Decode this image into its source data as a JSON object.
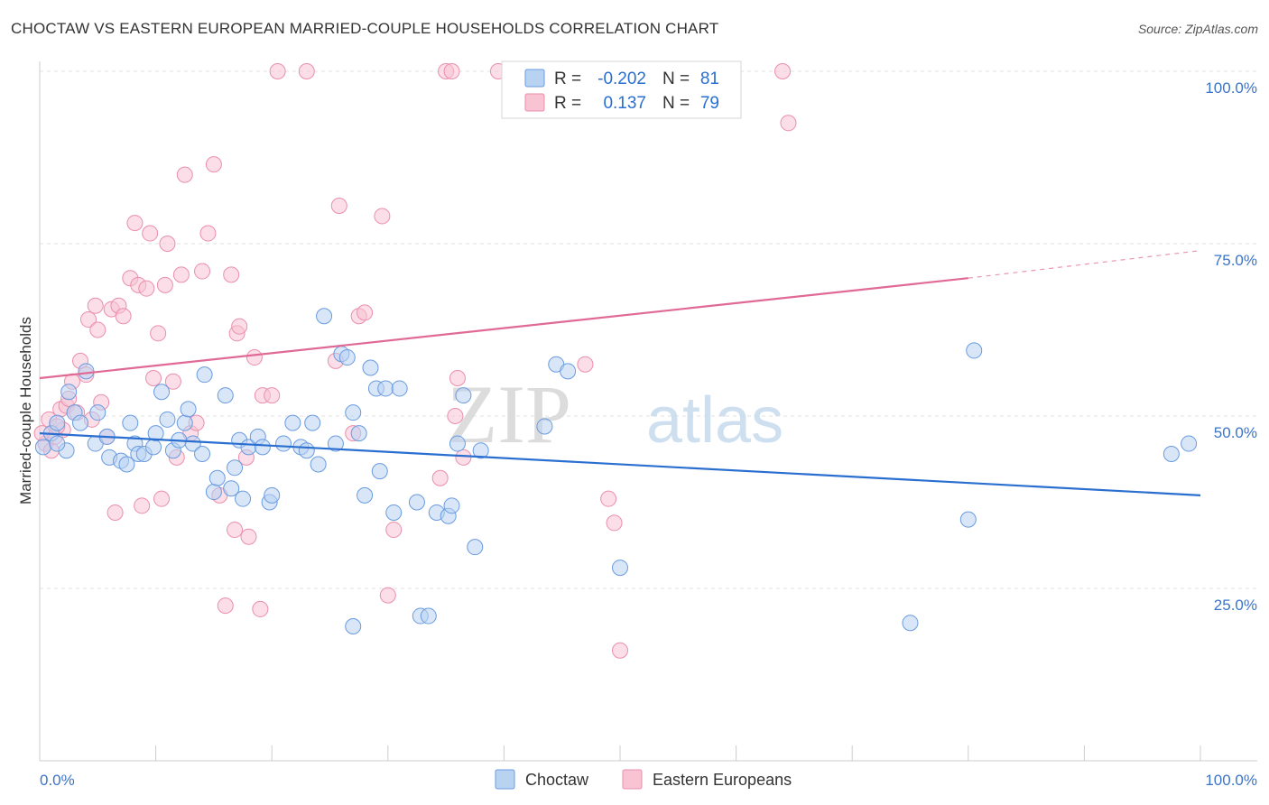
{
  "header": {
    "title": "CHOCTAW VS EASTERN EUROPEAN MARRIED-COUPLE HOUSEHOLDS CORRELATION CHART",
    "source": "Source: ZipAtlas.com"
  },
  "colors": {
    "choctaw_fill": "#b8d2f2",
    "choctaw_stroke": "#6a9be0",
    "choctaw_line": "#2a6fd0",
    "eastern_fill": "#f8c3d3",
    "eastern_stroke": "#ea8fad",
    "eastern_line": "#e06a95",
    "axis_text": "#3c74c8",
    "grid": "#e2e2e2"
  },
  "legend": {
    "choctaw": {
      "r_label": "R =",
      "r_value": "-0.202",
      "n_label": "N =",
      "n_value": "81"
    },
    "eastern": {
      "r_label": "R =",
      "r_value": "0.137",
      "n_label": "N =",
      "n_value": "79"
    }
  },
  "watermark": {
    "part1": "ZIP",
    "part2": "atlas"
  },
  "chart_data": {
    "type": "scatter",
    "title": "CHOCTAW VS EASTERN EUROPEAN MARRIED-COUPLE HOUSEHOLDS CORRELATION CHART",
    "xlabel": "",
    "ylabel": "Married-couple Households",
    "xlim": [
      0,
      100
    ],
    "ylim": [
      0,
      100
    ],
    "x_tick_labels": [
      "0.0%",
      "100.0%"
    ],
    "y_tick_labels": [
      "25.0%",
      "50.0%",
      "75.0%",
      "100.0%"
    ],
    "y_ticks": [
      25,
      50,
      75,
      100
    ],
    "bottom_legend": [
      "Choctaw",
      "Eastern Europeans"
    ],
    "series": [
      {
        "name": "Choctaw",
        "R": -0.202,
        "N": 81,
        "trend": {
          "x0": 0,
          "y0": 47.5,
          "x1": 100,
          "y1": 38.5
        },
        "points": [
          [
            0.3,
            45.5
          ],
          [
            1.0,
            47.5
          ],
          [
            1.5,
            49.0
          ],
          [
            2.3,
            45.0
          ],
          [
            2.5,
            53.5
          ],
          [
            3.0,
            50.5
          ],
          [
            3.5,
            49.0
          ],
          [
            4.0,
            56.5
          ],
          [
            4.8,
            46.0
          ],
          [
            5.0,
            50.5
          ],
          [
            5.8,
            47.0
          ],
          [
            6.0,
            44.0
          ],
          [
            7.0,
            43.5
          ],
          [
            7.5,
            43.0
          ],
          [
            7.8,
            49.0
          ],
          [
            8.2,
            46.0
          ],
          [
            8.5,
            44.5
          ],
          [
            9.0,
            44.5
          ],
          [
            9.8,
            45.5
          ],
          [
            10.0,
            47.5
          ],
          [
            10.5,
            53.5
          ],
          [
            11.0,
            49.5
          ],
          [
            11.5,
            45.0
          ],
          [
            12.0,
            46.5
          ],
          [
            12.5,
            49.0
          ],
          [
            12.8,
            51.0
          ],
          [
            13.2,
            46.0
          ],
          [
            14.0,
            44.5
          ],
          [
            14.2,
            56.0
          ],
          [
            15.0,
            39.0
          ],
          [
            15.3,
            41.0
          ],
          [
            16.0,
            53.0
          ],
          [
            16.5,
            39.5
          ],
          [
            16.8,
            42.5
          ],
          [
            17.2,
            46.5
          ],
          [
            17.5,
            38.0
          ],
          [
            18.0,
            45.5
          ],
          [
            18.8,
            47.0
          ],
          [
            19.2,
            45.5
          ],
          [
            19.8,
            37.5
          ],
          [
            20.0,
            38.5
          ],
          [
            21.0,
            46.0
          ],
          [
            21.8,
            49.0
          ],
          [
            22.5,
            45.5
          ],
          [
            23.0,
            45.0
          ],
          [
            23.5,
            49.0
          ],
          [
            24.0,
            43.0
          ],
          [
            24.5,
            64.5
          ],
          [
            25.5,
            46.0
          ],
          [
            26.0,
            59.0
          ],
          [
            26.5,
            58.5
          ],
          [
            27.0,
            50.5
          ],
          [
            27.5,
            47.5
          ],
          [
            28.0,
            38.5
          ],
          [
            28.5,
            57.0
          ],
          [
            29.0,
            54.0
          ],
          [
            29.3,
            42.0
          ],
          [
            29.8,
            54.0
          ],
          [
            30.5,
            36.0
          ],
          [
            31.0,
            54.0
          ],
          [
            32.5,
            37.5
          ],
          [
            32.8,
            21.0
          ],
          [
            33.5,
            21.0
          ],
          [
            34.2,
            36.0
          ],
          [
            35.2,
            35.5
          ],
          [
            35.5,
            37.0
          ],
          [
            36.0,
            46.0
          ],
          [
            36.5,
            53.0
          ],
          [
            37.5,
            31.0
          ],
          [
            38.0,
            45.0
          ],
          [
            43.5,
            48.5
          ],
          [
            44.5,
            57.5
          ],
          [
            45.5,
            56.5
          ],
          [
            50.0,
            28.0
          ],
          [
            75.0,
            20.0
          ],
          [
            80.0,
            35.0
          ],
          [
            80.5,
            59.5
          ],
          [
            97.5,
            44.5
          ],
          [
            99.0,
            46.0
          ],
          [
            27.0,
            19.5
          ],
          [
            1.5,
            46.0
          ]
        ]
      },
      {
        "name": "Eastern Europeans",
        "R": 0.137,
        "N": 79,
        "trend": {
          "x0": 0,
          "y0": 55.5,
          "x1": 80,
          "y1": 70.0,
          "dash_x1": 100,
          "dash_y1": 74.0
        },
        "points": [
          [
            0.5,
            46.0
          ],
          [
            0.8,
            49.5
          ],
          [
            1.0,
            45.0
          ],
          [
            1.3,
            47.0
          ],
          [
            1.8,
            51.0
          ],
          [
            2.0,
            48.0
          ],
          [
            2.3,
            51.5
          ],
          [
            2.5,
            52.5
          ],
          [
            2.8,
            55.0
          ],
          [
            3.2,
            50.5
          ],
          [
            3.5,
            58.0
          ],
          [
            4.0,
            56.0
          ],
          [
            4.2,
            64.0
          ],
          [
            4.5,
            49.5
          ],
          [
            4.8,
            66.0
          ],
          [
            5.0,
            62.5
          ],
          [
            5.3,
            52.0
          ],
          [
            5.8,
            47.0
          ],
          [
            6.2,
            65.5
          ],
          [
            6.5,
            36.0
          ],
          [
            6.8,
            66.0
          ],
          [
            7.2,
            64.5
          ],
          [
            7.8,
            70.0
          ],
          [
            8.2,
            78.0
          ],
          [
            8.5,
            69.0
          ],
          [
            8.8,
            37.0
          ],
          [
            9.2,
            68.5
          ],
          [
            9.5,
            76.5
          ],
          [
            9.8,
            55.5
          ],
          [
            10.2,
            62.0
          ],
          [
            10.5,
            38.0
          ],
          [
            10.8,
            69.0
          ],
          [
            11.0,
            75.0
          ],
          [
            11.5,
            55.0
          ],
          [
            11.8,
            44.0
          ],
          [
            12.2,
            70.5
          ],
          [
            12.5,
            85.0
          ],
          [
            13.0,
            47.5
          ],
          [
            13.5,
            49.0
          ],
          [
            14.0,
            71.0
          ],
          [
            14.5,
            76.5
          ],
          [
            15.0,
            86.5
          ],
          [
            15.5,
            38.5
          ],
          [
            16.0,
            22.5
          ],
          [
            16.5,
            70.5
          ],
          [
            16.8,
            33.5
          ],
          [
            17.0,
            62.0
          ],
          [
            17.2,
            63.0
          ],
          [
            17.8,
            44.0
          ],
          [
            18.0,
            32.5
          ],
          [
            18.5,
            58.5
          ],
          [
            19.0,
            22.0
          ],
          [
            19.2,
            53.0
          ],
          [
            20.0,
            53.0
          ],
          [
            20.5,
            100.0
          ],
          [
            23.0,
            100.0
          ],
          [
            25.5,
            58.0
          ],
          [
            25.8,
            80.5
          ],
          [
            27.0,
            47.5
          ],
          [
            27.5,
            64.5
          ],
          [
            28.0,
            65.0
          ],
          [
            29.5,
            79.0
          ],
          [
            30.0,
            24.0
          ],
          [
            30.5,
            33.5
          ],
          [
            34.5,
            41.0
          ],
          [
            35.0,
            100.0
          ],
          [
            35.5,
            100.0
          ],
          [
            35.8,
            50.0
          ],
          [
            36.0,
            55.5
          ],
          [
            36.5,
            44.0
          ],
          [
            39.5,
            100.0
          ],
          [
            47.0,
            57.5
          ],
          [
            49.0,
            38.0
          ],
          [
            49.5,
            34.5
          ],
          [
            50.0,
            16.0
          ],
          [
            64.0,
            100.0
          ],
          [
            64.5,
            92.5
          ],
          [
            1.5,
            48.5
          ],
          [
            0.2,
            47.5
          ]
        ]
      }
    ]
  }
}
